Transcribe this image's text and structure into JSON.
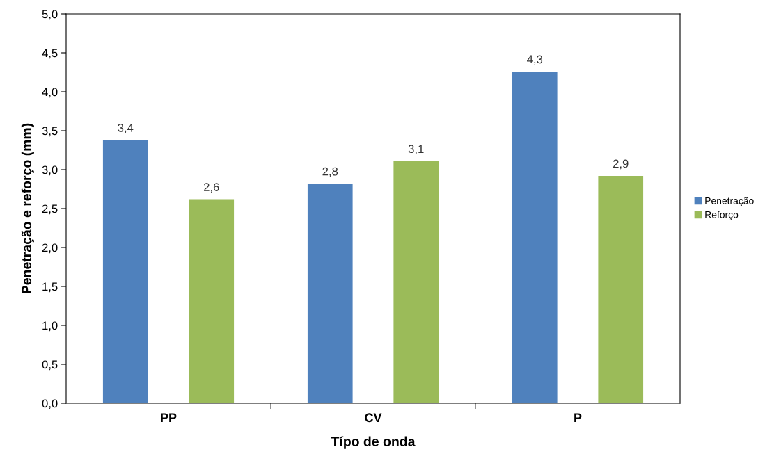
{
  "chart_data": {
    "type": "bar",
    "xlabel": "Típo de onda",
    "ylabel": "Penetração e reforço (mm)",
    "categories": [
      "PP",
      "CV",
      "P"
    ],
    "series": [
      {
        "name": "Penetração",
        "color": "#4f81bd",
        "values": [
          3.38,
          2.82,
          4.26
        ],
        "value_labels": [
          "3,4",
          "2,8",
          "4,3"
        ]
      },
      {
        "name": "Reforço",
        "color": "#9bbb59",
        "values": [
          2.62,
          3.11,
          2.92
        ],
        "value_labels": [
          "2,6",
          "3,1",
          "2,9"
        ]
      }
    ],
    "ylim": [
      0,
      5
    ],
    "yticks": [
      {
        "value": 0,
        "label": "0,0"
      },
      {
        "value": 0.5,
        "label": "0,5"
      },
      {
        "value": 1,
        "label": "1,0"
      },
      {
        "value": 1.5,
        "label": "1,5"
      },
      {
        "value": 2,
        "label": "2,0"
      },
      {
        "value": 2.5,
        "label": "2,5"
      },
      {
        "value": 3,
        "label": "3,0"
      },
      {
        "value": 3.5,
        "label": "3,5"
      },
      {
        "value": 4,
        "label": "4,0"
      },
      {
        "value": 4.5,
        "label": "4,5"
      },
      {
        "value": 5,
        "label": "5,0"
      }
    ],
    "grid": false,
    "legend": "right"
  }
}
